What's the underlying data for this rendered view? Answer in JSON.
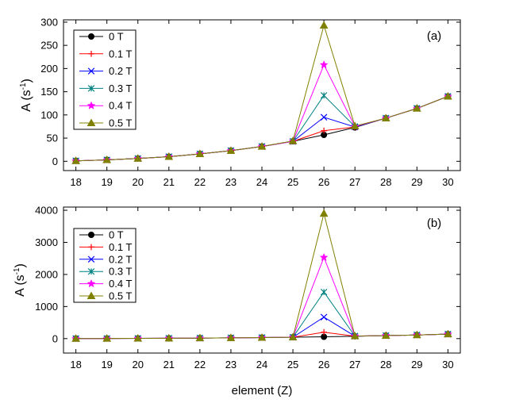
{
  "chart_data": [
    {
      "type": "line",
      "panel": "(a)",
      "ylabel": "A (s",
      "ylabel_sup": "-1",
      "ylabel_close": ")",
      "xlabel": "",
      "x": [
        18,
        19,
        20,
        21,
        22,
        23,
        24,
        25,
        26,
        27,
        28,
        29,
        30
      ],
      "xticks": [
        "18",
        "19",
        "20",
        "21",
        "22",
        "23",
        "24",
        "25",
        "26",
        "27",
        "28",
        "29",
        "30"
      ],
      "ylim": [
        -20,
        305
      ],
      "yticks": [
        "0",
        "50",
        "100",
        "150",
        "200",
        "250",
        "300"
      ],
      "ytick_values": [
        0,
        50,
        100,
        150,
        200,
        250,
        300
      ],
      "legend_position": "top-left",
      "series": [
        {
          "name": "0 T",
          "color": "#000000",
          "marker": "circle",
          "values": [
            1,
            3,
            6,
            10,
            16,
            23,
            32,
            43,
            57,
            73,
            93,
            114,
            140
          ]
        },
        {
          "name": "0.1 T",
          "color": "#ff0000",
          "marker": "plus",
          "values": [
            1,
            3,
            6,
            10,
            16,
            23,
            32,
            43,
            66,
            74,
            93,
            114,
            140
          ]
        },
        {
          "name": "0.2 T",
          "color": "#0000ff",
          "marker": "x",
          "values": [
            1,
            3,
            6,
            10,
            16,
            23,
            32,
            43,
            95,
            74,
            93,
            114,
            140
          ]
        },
        {
          "name": "0.3 T",
          "color": "#008080",
          "marker": "asterisk",
          "values": [
            1,
            3,
            6,
            10,
            16,
            23,
            32,
            43,
            142,
            75,
            93,
            114,
            140
          ]
        },
        {
          "name": "0.4 T",
          "color": "#ff00ff",
          "marker": "star",
          "values": [
            1,
            3,
            6,
            10,
            16,
            23,
            32,
            43,
            208,
            75,
            93,
            114,
            140
          ]
        },
        {
          "name": "0.5 T",
          "color": "#808000",
          "marker": "triangle",
          "values": [
            1,
            3,
            6,
            10,
            16,
            23,
            32,
            44,
            293,
            76,
            93,
            114,
            140
          ]
        }
      ]
    },
    {
      "type": "line",
      "panel": "(b)",
      "ylabel": "A (s",
      "ylabel_sup": "-1",
      "ylabel_close": ")",
      "xlabel": "element (Z)",
      "x": [
        18,
        19,
        20,
        21,
        22,
        23,
        24,
        25,
        26,
        27,
        28,
        29,
        30
      ],
      "xticks": [
        "18",
        "19",
        "20",
        "21",
        "22",
        "23",
        "24",
        "25",
        "26",
        "27",
        "28",
        "29",
        "30"
      ],
      "ylim": [
        -450,
        4100
      ],
      "yticks": [
        "0",
        "1000",
        "2000",
        "3000",
        "4000"
      ],
      "ytick_values": [
        0,
        1000,
        2000,
        3000,
        4000
      ],
      "legend_position": "top-left",
      "series": [
        {
          "name": "0 T",
          "color": "#000000",
          "marker": "circle",
          "values": [
            1,
            3,
            6,
            10,
            16,
            23,
            32,
            43,
            57,
            73,
            93,
            114,
            140
          ]
        },
        {
          "name": "0.1 T",
          "color": "#ff0000",
          "marker": "plus",
          "values": [
            1,
            3,
            6,
            10,
            16,
            23,
            32,
            43,
            200,
            75,
            93,
            114,
            140
          ]
        },
        {
          "name": "0.2 T",
          "color": "#0000ff",
          "marker": "x",
          "values": [
            1,
            3,
            6,
            10,
            16,
            23,
            32,
            43,
            670,
            76,
            93,
            114,
            140
          ]
        },
        {
          "name": "0.3 T",
          "color": "#008080",
          "marker": "asterisk",
          "values": [
            1,
            3,
            6,
            10,
            16,
            23,
            32,
            43,
            1450,
            78,
            93,
            114,
            140
          ]
        },
        {
          "name": "0.4 T",
          "color": "#ff00ff",
          "marker": "star",
          "values": [
            1,
            3,
            6,
            10,
            16,
            23,
            32,
            44,
            2530,
            80,
            93,
            114,
            140
          ]
        },
        {
          "name": "0.5 T",
          "color": "#808000",
          "marker": "triangle",
          "values": [
            1,
            3,
            6,
            10,
            16,
            23,
            32,
            45,
            3900,
            82,
            93,
            114,
            140
          ]
        }
      ]
    }
  ]
}
